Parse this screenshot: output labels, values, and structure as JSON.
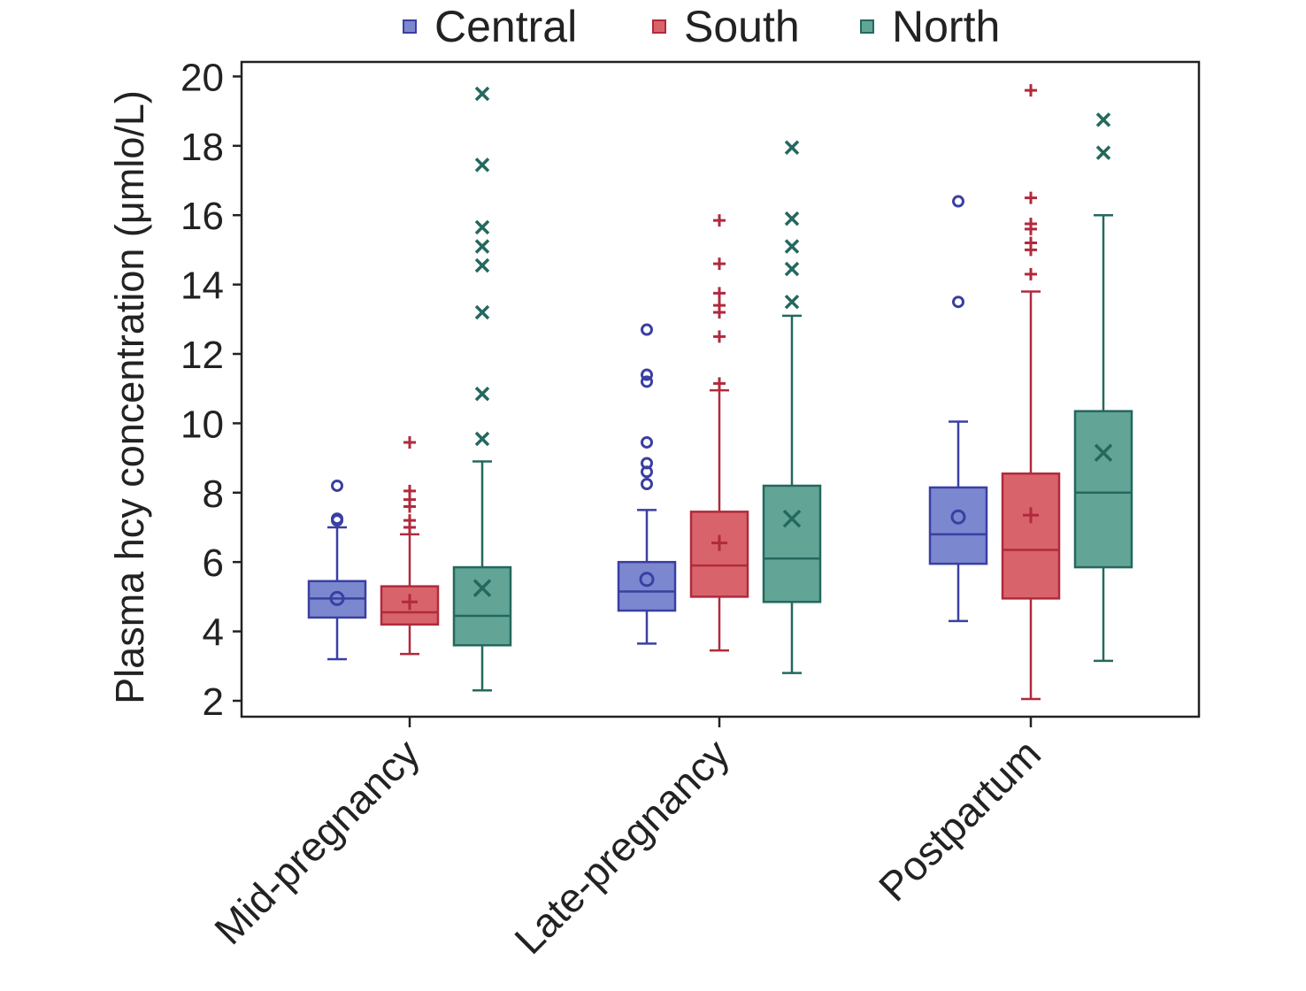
{
  "chart_data": {
    "type": "box",
    "ylabel": "Plasma hcy concentration (μmlo/L)",
    "xlabel": "",
    "ylim": [
      1.6,
      20.5
    ],
    "yticks": [
      2,
      4,
      6,
      8,
      10,
      12,
      14,
      16,
      18,
      20
    ],
    "categories": [
      "Mid-pregnancy",
      "Late-pregnancy",
      "Postpartum"
    ],
    "legend_position": "top",
    "grid": false,
    "series": [
      {
        "name": "Central",
        "color": "#3a3fa3",
        "fill": "#7b88cf",
        "mean_marker": "circle",
        "boxes": [
          {
            "whisker_low": 3.2,
            "q1": 4.4,
            "median": 4.95,
            "q3": 5.45,
            "whisker_high": 7.0,
            "mean": 4.95,
            "outliers": [
              7.2,
              7.25,
              8.2
            ]
          },
          {
            "whisker_low": 3.65,
            "q1": 4.6,
            "median": 5.15,
            "q3": 6.0,
            "whisker_high": 7.5,
            "mean": 5.5,
            "outliers": [
              8.25,
              8.6,
              8.85,
              9.45,
              11.2,
              11.4,
              12.7
            ]
          },
          {
            "whisker_low": 4.3,
            "q1": 5.95,
            "median": 6.8,
            "q3": 8.15,
            "whisker_high": 10.05,
            "mean": 7.3,
            "outliers": [
              13.5,
              16.4
            ]
          }
        ]
      },
      {
        "name": "South",
        "color": "#b02a3d",
        "fill": "#d9636b",
        "mean_marker": "plus",
        "boxes": [
          {
            "whisker_low": 3.35,
            "q1": 4.2,
            "median": 4.55,
            "q3": 5.3,
            "whisker_high": 6.8,
            "mean": 4.85,
            "outliers": [
              7.0,
              7.2,
              7.6,
              7.8,
              8.05,
              9.45
            ]
          },
          {
            "whisker_low": 3.45,
            "q1": 5.0,
            "median": 5.9,
            "q3": 7.45,
            "whisker_high": 10.95,
            "mean": 6.55,
            "outliers": [
              11.15,
              12.5,
              13.2,
              13.4,
              13.75,
              14.6,
              15.85
            ]
          },
          {
            "whisker_low": 2.05,
            "q1": 4.95,
            "median": 6.35,
            "q3": 8.55,
            "whisker_high": 13.8,
            "mean": 7.35,
            "outliers": [
              14.3,
              15.0,
              15.2,
              15.6,
              15.75,
              16.5,
              19.6
            ]
          }
        ]
      },
      {
        "name": "North",
        "color": "#24685e",
        "fill": "#62a597",
        "mean_marker": "x",
        "boxes": [
          {
            "whisker_low": 2.3,
            "q1": 3.6,
            "median": 4.45,
            "q3": 5.85,
            "whisker_high": 8.9,
            "mean": 5.25,
            "outliers": [
              9.55,
              10.85,
              13.2,
              14.55,
              15.1,
              15.65,
              17.45,
              19.5
            ]
          },
          {
            "whisker_low": 2.8,
            "q1": 4.85,
            "median": 6.1,
            "q3": 8.2,
            "whisker_high": 13.1,
            "mean": 7.25,
            "outliers": [
              13.5,
              14.45,
              15.1,
              15.9,
              17.95
            ]
          },
          {
            "whisker_low": 3.15,
            "q1": 5.85,
            "median": 8.0,
            "q3": 10.35,
            "whisker_high": 16.0,
            "mean": 9.15,
            "outliers": [
              17.8,
              18.75
            ]
          }
        ]
      }
    ]
  }
}
